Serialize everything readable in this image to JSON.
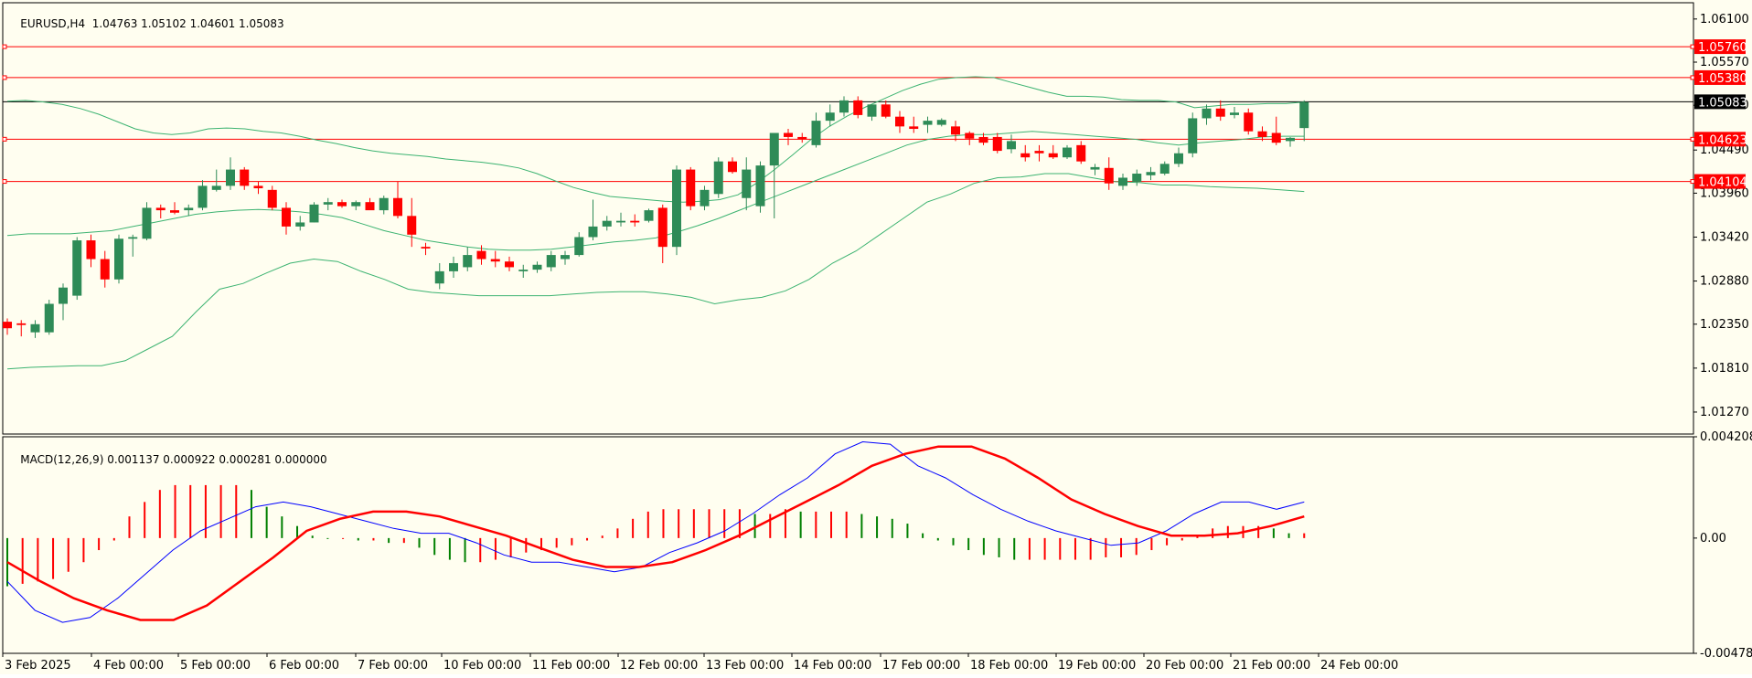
{
  "header": {
    "symbol": "EURUSD,H4",
    "ohlc": "1.04763 1.05102 1.04601 1.05083"
  },
  "indicator": {
    "label": "MACD(12,26,9) 0.001137 0.000922 0.000281 0.000000"
  },
  "colors": {
    "background": "#fffef0",
    "bull": "#2e8b57",
    "bear": "#ff0000",
    "bands": "#3cb371",
    "level": "#ff0000",
    "macd": "#0000ff",
    "signal": "#ff0000"
  },
  "chart_data": [
    {
      "type": "candlestick",
      "title": "",
      "ylim": [
        1.01,
        1.063
      ],
      "y_ticks": [
        "1.06100",
        "1.05570",
        "1.05040",
        "1.04490",
        "1.03960",
        "1.03420",
        "1.02880",
        "1.02350",
        "1.01810",
        "1.01270"
      ],
      "x_ticks": [
        "3 Feb 2025",
        "4 Feb 00:00",
        "5 Feb 00:00",
        "6 Feb 00:00",
        "7 Feb 00:00",
        "10 Feb 00:00",
        "11 Feb 00:00",
        "12 Feb 00:00",
        "13 Feb 00:00",
        "14 Feb 00:00",
        "17 Feb 00:00",
        "18 Feb 00:00",
        "19 Feb 00:00",
        "20 Feb 00:00",
        "21 Feb 00:00",
        "24 Feb 00:00"
      ],
      "levels": [
        {
          "label": "1.05760",
          "value": 1.0576
        },
        {
          "label": "1.05380",
          "value": 1.0538
        },
        {
          "label": "1.04623",
          "value": 1.04623
        },
        {
          "label": "1.04104",
          "value": 1.04104
        }
      ],
      "current_price": {
        "label": "1.05083",
        "value": 1.05083
      },
      "candles": [
        [
          1.0238,
          1.0242,
          1.0222,
          1.023
        ],
        [
          1.0236,
          1.024,
          1.022,
          1.0234
        ],
        [
          1.0225,
          1.024,
          1.0218,
          1.0235
        ],
        [
          1.0225,
          1.0265,
          1.0222,
          1.026
        ],
        [
          1.026,
          1.0285,
          1.024,
          1.028
        ],
        [
          1.027,
          1.0342,
          1.0265,
          1.0338
        ],
        [
          1.0338,
          1.0345,
          1.0305,
          1.0315
        ],
        [
          1.0315,
          1.0325,
          1.028,
          1.029
        ],
        [
          1.029,
          1.0345,
          1.0285,
          1.034
        ],
        [
          1.034,
          1.0345,
          1.0318,
          1.0342
        ],
        [
          1.034,
          1.0385,
          1.0338,
          1.0378
        ],
        [
          1.0378,
          1.0382,
          1.0365,
          1.0375
        ],
        [
          1.0375,
          1.0385,
          1.037,
          1.0372
        ],
        [
          1.0375,
          1.0382,
          1.0368,
          1.0378
        ],
        [
          1.0378,
          1.0412,
          1.0375,
          1.0405
        ],
        [
          1.04,
          1.0425,
          1.0398,
          1.0405
        ],
        [
          1.0405,
          1.044,
          1.04,
          1.0425
        ],
        [
          1.0425,
          1.0428,
          1.04,
          1.0405
        ],
        [
          1.0405,
          1.041,
          1.0395,
          1.0402
        ],
        [
          1.04,
          1.0405,
          1.0375,
          1.0378
        ],
        [
          1.0378,
          1.0385,
          1.0345,
          1.0355
        ],
        [
          1.0355,
          1.0368,
          1.035,
          1.036
        ],
        [
          1.036,
          1.0385,
          1.036,
          1.0382
        ],
        [
          1.0382,
          1.039,
          1.0375,
          1.0385
        ],
        [
          1.0385,
          1.0388,
          1.0378,
          1.038
        ],
        [
          1.038,
          1.0387,
          1.0375,
          1.0385
        ],
        [
          1.0385,
          1.039,
          1.0378,
          1.0375
        ],
        [
          1.0375,
          1.0393,
          1.037,
          1.039
        ],
        [
          1.039,
          1.041,
          1.0365,
          1.0368
        ],
        [
          1.0368,
          1.039,
          1.033,
          1.0345
        ],
        [
          1.033,
          1.0335,
          1.032,
          1.0328
        ],
        [
          1.0285,
          1.031,
          1.0278,
          1.03
        ],
        [
          1.03,
          1.0318,
          1.0292,
          1.031
        ],
        [
          1.0305,
          1.033,
          1.03,
          1.032
        ],
        [
          1.0325,
          1.0332,
          1.0308,
          1.0315
        ],
        [
          1.0315,
          1.0325,
          1.0305,
          1.0312
        ],
        [
          1.0312,
          1.0318,
          1.03,
          1.0305
        ],
        [
          1.03,
          1.0308,
          1.0292,
          1.0302
        ],
        [
          1.0302,
          1.0312,
          1.0298,
          1.0308
        ],
        [
          1.0305,
          1.0325,
          1.03,
          1.032
        ],
        [
          1.0315,
          1.0325,
          1.0308,
          1.032
        ],
        [
          1.032,
          1.0348,
          1.0318,
          1.0342
        ],
        [
          1.0342,
          1.0388,
          1.0338,
          1.0355
        ],
        [
          1.0355,
          1.0368,
          1.035,
          1.0362
        ],
        [
          1.036,
          1.0372,
          1.0355,
          1.0362
        ],
        [
          1.0362,
          1.037,
          1.0355,
          1.036
        ],
        [
          1.0362,
          1.0377,
          1.036,
          1.0375
        ],
        [
          1.0378,
          1.0382,
          1.031,
          1.033
        ],
        [
          1.033,
          1.043,
          1.032,
          1.0425
        ],
        [
          1.0425,
          1.0428,
          1.0375,
          1.038
        ],
        [
          1.038,
          1.0405,
          1.0375,
          1.04
        ],
        [
          1.0395,
          1.044,
          1.039,
          1.0435
        ],
        [
          1.0435,
          1.044,
          1.042,
          1.0422
        ],
        [
          1.039,
          1.044,
          1.0375,
          1.0425
        ],
        [
          1.038,
          1.0435,
          1.0372,
          1.043
        ],
        [
          1.043,
          1.047,
          1.0365,
          1.047
        ],
        [
          1.047,
          1.0475,
          1.0455,
          1.0465
        ],
        [
          1.0465,
          1.047,
          1.0458,
          1.0462
        ],
        [
          1.0455,
          1.0495,
          1.0452,
          1.0485
        ],
        [
          1.0485,
          1.0505,
          1.0478,
          1.0495
        ],
        [
          1.0495,
          1.0515,
          1.049,
          1.051
        ],
        [
          1.051,
          1.0515,
          1.0488,
          1.0492
        ],
        [
          1.049,
          1.0505,
          1.0485,
          1.0505
        ],
        [
          1.0505,
          1.051,
          1.0488,
          1.049
        ],
        [
          1.049,
          1.0497,
          1.047,
          1.0478
        ],
        [
          1.0478,
          1.049,
          1.047,
          1.0475
        ],
        [
          1.048,
          1.049,
          1.047,
          1.0485
        ],
        [
          1.048,
          1.0488,
          1.0478,
          1.0486
        ],
        [
          1.0478,
          1.0485,
          1.046,
          1.0468
        ],
        [
          1.047,
          1.0472,
          1.0455,
          1.0463
        ],
        [
          1.0465,
          1.047,
          1.0455,
          1.0458
        ],
        [
          1.0465,
          1.047,
          1.0445,
          1.0448
        ],
        [
          1.045,
          1.0468,
          1.0445,
          1.046
        ],
        [
          1.0445,
          1.0455,
          1.0435,
          1.044
        ],
        [
          1.0448,
          1.0455,
          1.0435,
          1.0445
        ],
        [
          1.0445,
          1.0455,
          1.0438,
          1.044
        ],
        [
          1.044,
          1.0455,
          1.0438,
          1.0452
        ],
        [
          1.0455,
          1.046,
          1.0432,
          1.0435
        ],
        [
          1.0425,
          1.0432,
          1.0418,
          1.0428
        ],
        [
          1.0427,
          1.044,
          1.04,
          1.0408
        ],
        [
          1.0405,
          1.042,
          1.04,
          1.0415
        ],
        [
          1.041,
          1.0425,
          1.0405,
          1.042
        ],
        [
          1.0418,
          1.0428,
          1.0412,
          1.0422
        ],
        [
          1.042,
          1.0435,
          1.0418,
          1.0432
        ],
        [
          1.0432,
          1.0452,
          1.0428,
          1.0445
        ],
        [
          1.0445,
          1.0495,
          1.044,
          1.0488
        ],
        [
          1.0488,
          1.0505,
          1.048,
          1.05
        ],
        [
          1.05,
          1.051,
          1.0485,
          1.049
        ],
        [
          1.0492,
          1.0502,
          1.0488,
          1.0495
        ],
        [
          1.0495,
          1.05,
          1.0468,
          1.0472
        ],
        [
          1.0472,
          1.0478,
          1.046,
          1.0465
        ],
        [
          1.047,
          1.049,
          1.0455,
          1.0458
        ],
        [
          1.046,
          1.0465,
          1.0453,
          1.0464
        ],
        [
          1.0476,
          1.051,
          1.046,
          1.0508
        ]
      ],
      "bands_upper": [
        1.0509,
        1.051,
        1.0508,
        1.0505,
        1.05,
        1.0493,
        1.0484,
        1.0475,
        1.047,
        1.0468,
        1.047,
        1.0475,
        1.0476,
        1.0475,
        1.0472,
        1.047,
        1.0466,
        1.0461,
        1.0457,
        1.0452,
        1.0448,
        1.0445,
        1.0443,
        1.0441,
        1.0438,
        1.0436,
        1.0434,
        1.0431,
        1.0427,
        1.042,
        1.0411,
        1.0403,
        1.0397,
        1.0392,
        1.039,
        1.0388,
        1.0386,
        1.0385,
        1.0386,
        1.0388,
        1.0394,
        1.0408,
        1.0425,
        1.0443,
        1.0462,
        1.0478,
        1.0491,
        1.0502,
        1.0512,
        1.0522,
        1.053,
        1.0536,
        1.0538,
        1.0539,
        1.0538,
        1.0532,
        1.0526,
        1.052,
        1.0515,
        1.0515,
        1.0514,
        1.0511,
        1.051,
        1.051,
        1.0508,
        1.0501,
        1.0503,
        1.0505,
        1.0505,
        1.0506,
        1.0506,
        1.0508
      ],
      "bands_middle": [
        1.0344,
        1.0346,
        1.0346,
        1.0346,
        1.0348,
        1.035,
        1.0355,
        1.036,
        1.0365,
        1.037,
        1.0373,
        1.0375,
        1.0376,
        1.0375,
        1.0373,
        1.037,
        1.0366,
        1.0358,
        1.035,
        1.0344,
        1.0338,
        1.0334,
        1.033,
        1.0327,
        1.0326,
        1.0326,
        1.0327,
        1.033,
        1.0333,
        1.0336,
        1.0338,
        1.0341,
        1.0348,
        1.0356,
        1.0365,
        1.0375,
        1.0385,
        1.0395,
        1.0405,
        1.0415,
        1.0425,
        1.0435,
        1.0445,
        1.0455,
        1.0462,
        1.0466,
        1.0468,
        1.0468,
        1.047,
        1.0472,
        1.047,
        1.0468,
        1.0466,
        1.0464,
        1.0462,
        1.0458,
        1.0455,
        1.0458,
        1.046,
        1.0462,
        1.0465,
        1.0466,
        1.0466
      ],
      "bands_lower": [
        1.018,
        1.0182,
        1.0183,
        1.0184,
        1.0184,
        1.019,
        1.0205,
        1.022,
        1.025,
        1.0278,
        1.0285,
        1.0298,
        1.031,
        1.0315,
        1.0312,
        1.03,
        1.029,
        1.0278,
        1.0274,
        1.0272,
        1.027,
        1.027,
        1.027,
        1.027,
        1.0272,
        1.0274,
        1.0275,
        1.0275,
        1.0272,
        1.0268,
        1.026,
        1.0265,
        1.0268,
        1.0276,
        1.029,
        1.031,
        1.0325,
        1.0345,
        1.0365,
        1.0385,
        1.0395,
        1.0408,
        1.0415,
        1.0416,
        1.042,
        1.042,
        1.0415,
        1.041,
        1.0409,
        1.0406,
        1.0406,
        1.0404,
        1.0403,
        1.0402,
        1.04,
        1.0398
      ]
    },
    {
      "type": "bar",
      "title": "",
      "ylim": [
        -0.004787,
        0.004208
      ],
      "y_ticks": [
        "0.004208",
        "0.00",
        "-0.004787"
      ],
      "histogram": [
        -0.002,
        -0.0019,
        -0.0018,
        -0.0017,
        -0.0014,
        -0.001,
        -0.0005,
        -0.0001,
        0.0009,
        0.0015,
        0.002,
        0.0022,
        0.0022,
        0.0022,
        0.0022,
        0.0022,
        0.002,
        0.0013,
        0.0009,
        0.0005,
        0.0001,
        0.0,
        0.0,
        -0.0001,
        -0.0001,
        -0.0002,
        -0.0002,
        -0.0004,
        -0.0007,
        -0.0009,
        -0.001,
        -0.001,
        -0.0009,
        -0.0008,
        -0.0006,
        -0.0005,
        -0.0004,
        -0.0003,
        -0.0001,
        0.0001,
        0.0004,
        0.0008,
        0.0011,
        0.0012,
        0.0012,
        0.0012,
        0.0012,
        0.0012,
        0.0012,
        0.001,
        0.001,
        0.0012,
        0.0011,
        0.0011,
        0.0011,
        0.0011,
        0.001,
        0.0009,
        0.0008,
        0.0006,
        0.0002,
        -0.0001,
        -0.0003,
        -0.0005,
        -0.0007,
        -0.0008,
        -0.0009,
        -0.0009,
        -0.0009,
        -0.0009,
        -0.0009,
        -0.0009,
        -0.0008,
        -0.0008,
        -0.0007,
        -0.0005,
        -0.0003,
        -0.0001,
        0.0001,
        0.0004,
        0.0005,
        0.0005,
        0.0005,
        0.0004,
        0.0002,
        0.0002
      ],
      "macd": [
        -0.0018,
        -0.003,
        -0.0035,
        -0.0033,
        -0.0025,
        -0.0015,
        -0.0005,
        0.0003,
        0.0008,
        0.0013,
        0.0015,
        0.0013,
        0.001,
        0.0007,
        0.0004,
        0.0002,
        0.0002,
        -0.0002,
        -0.0007,
        -0.001,
        -0.001,
        -0.0012,
        -0.0014,
        -0.0012,
        -0.0006,
        -0.0002,
        0.0003,
        0.001,
        0.0018,
        0.0025,
        0.0035,
        0.004,
        0.0039,
        0.003,
        0.0025,
        0.0018,
        0.0012,
        0.0007,
        0.0003,
        0.0,
        -0.0003,
        -0.0002,
        0.0003,
        0.001,
        0.0015,
        0.0015,
        0.0012,
        0.0015
      ],
      "signal": [
        -0.001,
        -0.0018,
        -0.0025,
        -0.003,
        -0.0034,
        -0.0034,
        -0.0028,
        -0.0018,
        -0.0008,
        0.0003,
        0.0008,
        0.0011,
        0.0011,
        0.0009,
        0.0005,
        0.0001,
        -0.0004,
        -0.0009,
        -0.0012,
        -0.0012,
        -0.001,
        -0.0005,
        0.0001,
        0.0008,
        0.0015,
        0.0022,
        0.003,
        0.0035,
        0.0038,
        0.0038,
        0.0033,
        0.0025,
        0.0016,
        0.001,
        0.0005,
        0.0001,
        0.0001,
        0.0002,
        0.0005,
        0.0009
      ]
    }
  ]
}
